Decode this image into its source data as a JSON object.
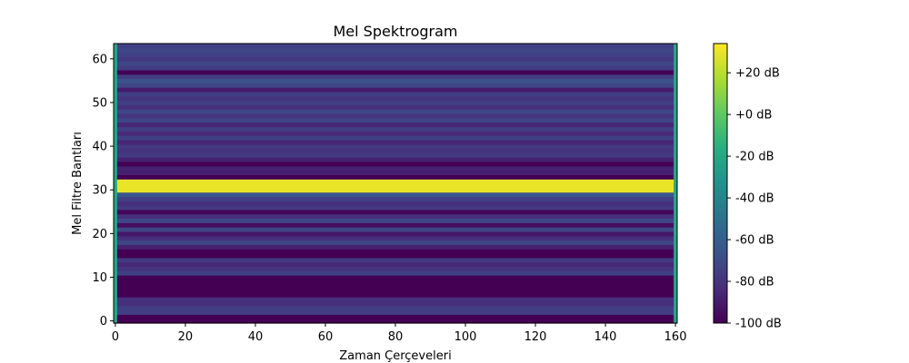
{
  "chart_data": {
    "type": "heatmap",
    "title": "Mel Spektrogram",
    "xlabel": "Zaman Çerçeveleri",
    "ylabel": "Mel Filtre Bantları",
    "xlim": [
      -0.5,
      160.5
    ],
    "ylim": [
      -0.5,
      63.5
    ],
    "x_ticks": [
      0,
      20,
      40,
      60,
      80,
      100,
      120,
      140,
      160
    ],
    "y_ticks": [
      0,
      10,
      20,
      30,
      40,
      50,
      60
    ],
    "colormap": "viridis",
    "colorbar": {
      "range": [
        -100,
        34
      ],
      "ticks": [
        20,
        0,
        -20,
        -40,
        -60,
        -80,
        -100
      ],
      "tick_labels": [
        "+20 dB",
        "+0 dB",
        "-20 dB",
        "-40 dB",
        "-60 dB",
        "-80 dB",
        "-100 dB"
      ]
    },
    "edge_frames": [
      0,
      160
    ],
    "edge_value": -20,
    "band_values_db": [
      -100,
      -100,
      -75,
      -75,
      -82,
      -82,
      -100,
      -100,
      -100,
      -100,
      -100,
      -74,
      -80,
      -85,
      -78,
      -100,
      -100,
      -88,
      -72,
      -82,
      -92,
      -72,
      -95,
      -72,
      -82,
      -98,
      -78,
      -82,
      -74,
      -65,
      30,
      30,
      30,
      -100,
      -88,
      -88,
      -100,
      -88,
      -78,
      -80,
      -78,
      -86,
      -75,
      -84,
      -75,
      -86,
      -72,
      -80,
      -72,
      -82,
      -75,
      -80,
      -75,
      -90,
      -72,
      -66,
      -76,
      -100,
      -76,
      -72,
      -78,
      -74,
      -72,
      -74
    ]
  }
}
